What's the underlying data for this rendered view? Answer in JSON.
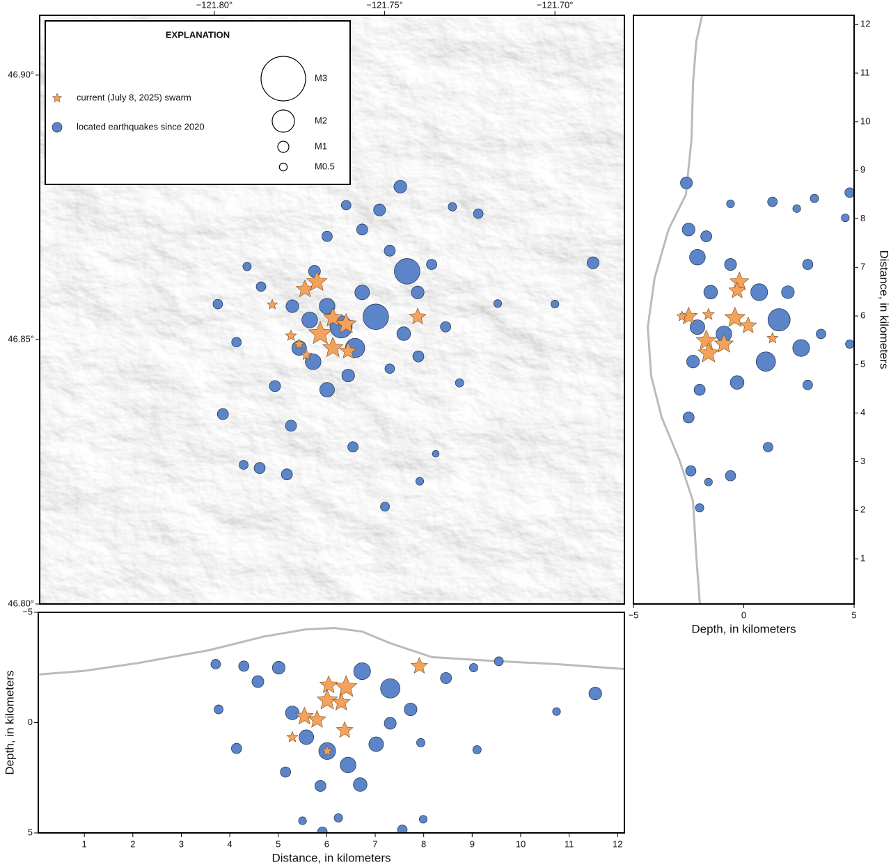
{
  "chart_data": [
    {
      "type": "scatter",
      "legend_title": "EXPLANATION",
      "xlim": [
        -121.8513,
        -121.6796
      ],
      "ylim": [
        46.8,
        46.9113
      ],
      "xticks": [
        {
          "value": -121.8,
          "label": "−121.80°"
        },
        {
          "value": -121.75,
          "label": "−121.75°"
        },
        {
          "value": -121.7,
          "label": "−121.70°"
        }
      ],
      "yticks": [
        {
          "value": 46.9,
          "label": "46.90°"
        },
        {
          "value": 46.85,
          "label": "46.85°"
        },
        {
          "value": 46.8,
          "label": "46.80°"
        }
      ],
      "xaxis_position": "top",
      "yaxis_position": "left",
      "size_legend": [
        {
          "value": 3,
          "label": "M3"
        },
        {
          "value": 2,
          "label": "M2"
        },
        {
          "value": 1,
          "label": "M1"
        },
        {
          "value": 0.5,
          "label": "M0.5"
        }
      ],
      "series": [
        {
          "name": "located earthquakes since 2020",
          "color": "#5b84c9",
          "marker": "circle",
          "x": [
            -121.7454,
            -121.7515,
            -121.7613,
            -121.7434,
            -121.7526,
            -121.6888,
            -121.7,
            -121.7225,
            -121.7301,
            -121.799,
            -121.7863,
            -121.7904,
            -121.7935,
            -121.7975,
            -121.7914,
            -121.7867,
            -121.7787,
            -121.7775,
            -121.7593,
            -121.7499,
            -121.7397,
            -121.735,
            -121.7401,
            -121.7168,
            -121.728,
            -121.7706,
            -121.7669,
            -121.7751,
            -121.7669,
            -121.7587,
            -121.7628,
            -121.772,
            -121.7566,
            -121.7403,
            -121.7321,
            -121.7485,
            -121.7566,
            -121.7669,
            -121.7485,
            -121.7771,
            -121.771,
            -121.7607,
            -121.7444,
            -121.7822,
            -121.7362
          ],
          "y": [
            46.8789,
            46.8745,
            46.8754,
            46.8629,
            46.8543,
            46.8645,
            46.8567,
            46.8738,
            46.8751,
            46.8567,
            46.86,
            46.8638,
            46.8495,
            46.8359,
            46.8263,
            46.8257,
            46.8245,
            46.8337,
            46.8297,
            46.8184,
            46.8232,
            46.8284,
            46.8468,
            46.8568,
            46.8418,
            46.8629,
            46.8563,
            46.8484,
            46.8405,
            46.8484,
            46.8524,
            46.8537,
            46.8589,
            46.8589,
            46.8524,
            46.8445,
            46.8708,
            46.8695,
            46.8668,
            46.8563,
            46.8458,
            46.8432,
            46.8511,
            46.8412,
            46.8642
          ],
          "size": [
            1.2,
            1.1,
            0.8,
            2.2,
            2.2,
            1.1,
            0.5,
            0.8,
            0.6,
            0.8,
            0.8,
            0.6,
            0.8,
            1.0,
            0.7,
            1.0,
            1.0,
            1.0,
            0.9,
            0.7,
            0.5,
            0.3,
            1.0,
            0.5,
            0.6,
            1.1,
            1.5,
            1.4,
            1.4,
            1.8,
            2.0,
            1.5,
            1.4,
            1.2,
            0.9,
            0.8,
            1.0,
            0.9,
            1.0,
            1.2,
            1.5,
            1.2,
            1.3,
            1.0,
            0.9
          ]
        },
        {
          "name": "current (July 8, 2025) swarm",
          "color": "#f4a25b",
          "marker": "star",
          "x": [
            -121.7734,
            -121.7699,
            -121.783,
            -121.7652,
            -121.7613,
            -121.7689,
            -121.7652,
            -121.7403,
            -121.7775,
            -121.7751,
            -121.773,
            -121.7607
          ],
          "y": [
            46.8595,
            46.8609,
            46.8566,
            46.8541,
            46.8529,
            46.8511,
            46.8484,
            46.8543,
            46.8507,
            46.8491,
            46.8471,
            46.8478
          ],
          "size": [
            1.3,
            1.5,
            0.5,
            1.4,
            1.5,
            1.7,
            1.5,
            1.2,
            0.6,
            0.5,
            0.6,
            1.2
          ]
        }
      ]
    },
    {
      "type": "scatter",
      "xlabel": "Depth, in kilometers",
      "ylabel": "Distance, in kilometers",
      "xlim": [
        -5,
        5
      ],
      "ylim": [
        0.07,
        12.19
      ],
      "xticks": [
        {
          "value": -5,
          "label": "−5"
        },
        0,
        5
      ],
      "yticks": [
        1,
        2,
        3,
        4,
        5,
        6,
        7,
        8,
        9,
        10,
        11,
        12
      ],
      "xaxis_position": "bottom",
      "yaxis_position": "right",
      "profile": {
        "color": "#bbbbbb",
        "x": [
          -1.89,
          -2.15,
          -2.3,
          -2.37,
          -2.62,
          -3.41,
          -4.04,
          -4.35,
          -4.2,
          -3.72,
          -2.93,
          -2.3,
          -2.15,
          -1.99
        ],
        "y": [
          12.19,
          11.65,
          10.79,
          9.64,
          8.5,
          7.78,
          6.78,
          5.77,
          4.77,
          3.91,
          3.05,
          2.19,
          1.05,
          0.07
        ]
      },
      "series": [
        {
          "color": "#5b84c9",
          "marker": "circle",
          "x": [
            -2.6,
            4.8,
            -0.6,
            1.3,
            3.2,
            2.4,
            4.6,
            -2.0,
            2.9,
            1.1,
            -2.4,
            -0.6,
            -2.0,
            -1.6,
            -2.1,
            -1.5,
            0.7,
            1.6,
            2.6,
            1.0,
            -0.3,
            -2.1,
            -2.3,
            -2.5,
            -0.9,
            2.0,
            2.9,
            4.8,
            3.5,
            -0.6,
            -2.5,
            -1.7
          ],
          "y": [
            8.74,
            8.54,
            8.31,
            8.35,
            8.42,
            8.21,
            8.02,
            4.48,
            4.58,
            3.3,
            2.81,
            2.71,
            2.05,
            2.58,
            7.21,
            6.49,
            6.49,
            5.92,
            5.34,
            5.06,
            4.63,
            5.77,
            5.06,
            3.91,
            5.63,
            6.49,
            7.06,
            5.42,
            5.63,
            7.06,
            7.78,
            7.64
          ],
          "size": [
            1.1,
            0.8,
            0.5,
            0.8,
            0.6,
            0.5,
            0.5,
            1.0,
            0.8,
            0.8,
            0.9,
            0.9,
            0.6,
            0.5,
            1.5,
            1.3,
            1.6,
            2.0,
            1.6,
            1.8,
            1.3,
            1.4,
            1.2,
            1.0,
            1.5,
            1.2,
            0.9,
            0.6,
            0.8,
            1.1,
            1.2,
            1.0
          ]
        },
        {
          "color": "#f4a25b",
          "marker": "star",
          "x": [
            -0.2,
            -0.3,
            -2.5,
            -1.6,
            -0.4,
            -1.7,
            -1.6,
            -0.9,
            0.2,
            1.3,
            -2.8
          ],
          "y": [
            6.7,
            6.52,
            5.99,
            6.03,
            5.96,
            5.49,
            5.23,
            5.42,
            5.8,
            5.54,
            5.99
          ],
          "size": [
            1.4,
            1.2,
            1.3,
            0.7,
            1.5,
            1.5,
            1.5,
            1.4,
            1.2,
            0.6,
            0.5
          ]
        }
      ]
    },
    {
      "type": "scatter",
      "xlabel": "Distance, in kilometers",
      "ylabel": "Depth, in kilometers",
      "xlim": [
        0.05,
        12.14
      ],
      "ylim": [
        -5,
        5
      ],
      "y_inverted": true,
      "xticks": [
        1,
        2,
        3,
        4,
        5,
        6,
        7,
        8,
        9,
        10,
        11,
        12
      ],
      "yticks": [
        {
          "value": -5,
          "label": "−5"
        },
        0,
        5
      ],
      "xaxis_position": "bottom",
      "yaxis_position": "left",
      "profile": {
        "color": "#bbbbbb",
        "x": [
          0.05,
          0.98,
          2.13,
          3.57,
          4.72,
          5.58,
          6.16,
          6.73,
          7.31,
          8.17,
          9.32,
          10.76,
          12.14
        ],
        "y": [
          -2.18,
          -2.34,
          -2.71,
          -3.28,
          -3.91,
          -4.23,
          -4.29,
          -4.13,
          -3.6,
          -2.97,
          -2.81,
          -2.65,
          -2.43
        ]
      },
      "series": [
        {
          "color": "#5b84c9",
          "marker": "circle",
          "x": [
            3.71,
            11.54,
            10.74,
            9.55,
            4.14,
            3.77,
            7.56,
            5.91,
            5.5,
            6.24,
            7.99,
            7.94,
            9.1,
            6.69,
            6.01,
            6.44,
            5.58,
            7.02,
            7.31,
            6.73,
            5.01,
            8.46,
            7.73,
            4.58,
            4.29,
            5.87,
            5.15,
            9.03,
            5.29,
            7.31
          ],
          "y": [
            -2.65,
            -1.32,
            -0.5,
            -2.78,
            1.17,
            -0.6,
            4.86,
            4.95,
            4.45,
            4.32,
            4.38,
            0.91,
            1.23,
            2.81,
            1.29,
            1.92,
            0.66,
            0.98,
            -1.55,
            -2.33,
            -2.49,
            -2.02,
            -0.6,
            -1.86,
            -2.56,
            2.87,
            2.24,
            -2.49,
            -0.44,
            0.03
          ],
          "size": [
            0.8,
            1.2,
            0.5,
            0.7,
            0.9,
            0.7,
            0.8,
            0.8,
            0.5,
            0.6,
            0.5,
            0.6,
            0.6,
            1.3,
            1.6,
            1.5,
            1.4,
            1.4,
            1.8,
            1.6,
            1.2,
            1.0,
            1.2,
            1.1,
            0.9,
            1.0,
            0.9,
            0.6,
            1.3,
            1.1
          ]
        },
        {
          "color": "#f4a25b",
          "marker": "star",
          "x": [
            7.91,
            6.4,
            6.04,
            6.01,
            6.37,
            5.8,
            5.54,
            5.29,
            6.3,
            6.01
          ],
          "y": [
            -2.56,
            -1.61,
            -1.7,
            -1.01,
            0.35,
            -0.13,
            -0.28,
            0.66,
            -0.91,
            1.29
          ],
          "size": [
            1.2,
            1.6,
            1.3,
            1.5,
            1.2,
            1.3,
            1.3,
            0.6,
            1.3,
            0.5
          ]
        }
      ]
    }
  ]
}
